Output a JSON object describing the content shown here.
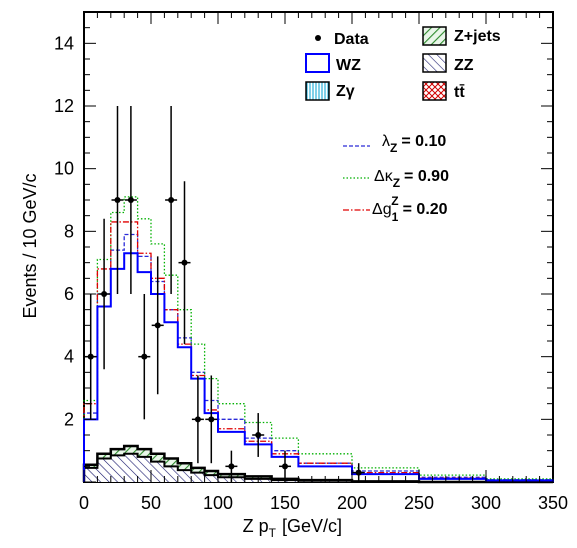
{
  "chart_data": {
    "type": "histogram",
    "xlabel": "Z p_T [GeV/c]",
    "xlabel_main": "Z p",
    "xlabel_sub": "T",
    "xlabel_unit": "[GeV/c]",
    "ylabel": "Events / 10 GeV/c",
    "xlim": [
      0,
      350
    ],
    "ylim": [
      0,
      15
    ],
    "xticks": [
      "0",
      "50",
      "100",
      "150",
      "200",
      "250",
      "300",
      "350"
    ],
    "yticks": [
      "2",
      "4",
      "6",
      "8",
      "10",
      "12",
      "14"
    ],
    "bin_edges": [
      0,
      10,
      20,
      30,
      40,
      50,
      60,
      70,
      80,
      90,
      100,
      120,
      140,
      160,
      200,
      250,
      300,
      350
    ],
    "legend": {
      "data": "Data",
      "wz": "WZ",
      "zgamma": "Zγ",
      "zjets": "Z+jets",
      "zz": "ZZ",
      "ttbar": "tt̄",
      "lambda_symbol": "λ",
      "lambda_sub": "Z",
      "lambda_value": "= 0.10",
      "kappa_symbol": "Δκ",
      "kappa_sub": "Z",
      "kappa_value": "= 0.90",
      "g_symbol": "Δg",
      "g_sub": "1",
      "g_sup": "Z",
      "g_value": "= 0.20"
    },
    "colors": {
      "wz": "#0000ff",
      "lambda": "#2a2ad8",
      "kappa": "#00b000",
      "g1": "#e00000",
      "zjets_fill": "#2e8b2e",
      "zz_fill": "#1a1a6e",
      "zgamma_fill": "#00a0d0",
      "ttbar_fill": "#d00000"
    },
    "series": [
      {
        "name": "WZ",
        "values": [
          2.0,
          5.6,
          6.8,
          7.3,
          6.7,
          6.0,
          5.1,
          4.3,
          3.3,
          2.2,
          1.6,
          1.2,
          0.8,
          0.5,
          0.25,
          0.1,
          0.05
        ]
      },
      {
        "name": "λZ = 0.10",
        "values": [
          2.2,
          6.0,
          7.4,
          7.9,
          7.2,
          6.4,
          5.5,
          4.6,
          3.5,
          2.6,
          2.0,
          1.4,
          1.0,
          0.6,
          0.35,
          0.15,
          0.07
        ]
      },
      {
        "name": "ΔκZ = 0.90",
        "values": [
          2.6,
          7.1,
          8.6,
          9.1,
          8.4,
          7.6,
          6.6,
          5.5,
          4.4,
          3.3,
          2.5,
          1.9,
          1.4,
          0.9,
          0.45,
          0.22,
          0.1
        ]
      },
      {
        "name": "Δg1Z = 0.20",
        "values": [
          2.5,
          6.8,
          8.3,
          8.3,
          7.3,
          6.5,
          5.5,
          4.4,
          3.4,
          2.3,
          1.7,
          1.3,
          0.9,
          0.6,
          0.3,
          0.12,
          0.05
        ]
      }
    ],
    "backgrounds": {
      "zz": [
        0.45,
        0.75,
        0.85,
        0.9,
        0.8,
        0.65,
        0.5,
        0.38,
        0.3,
        0.22,
        0.15,
        0.1,
        0.06,
        0.04,
        0.0,
        0.0,
        0.0
      ],
      "total": [
        0.55,
        0.9,
        1.05,
        1.15,
        1.05,
        0.9,
        0.75,
        0.6,
        0.45,
        0.35,
        0.25,
        0.18,
        0.1,
        0.06,
        0.02,
        0.0,
        0.0
      ]
    },
    "data_points": [
      {
        "x": 5,
        "y": 4,
        "yerr": 2
      },
      {
        "x": 15,
        "y": 6,
        "yerr": 2.4
      },
      {
        "x": 25,
        "y": 9,
        "yerr": 3
      },
      {
        "x": 35,
        "y": 9,
        "yerr": 3
      },
      {
        "x": 45,
        "y": 4,
        "yerr": 2
      },
      {
        "x": 55,
        "y": 5,
        "yerr": 2.2
      },
      {
        "x": 65,
        "y": 9,
        "yerr": 3
      },
      {
        "x": 75,
        "y": 7,
        "yerr": 2.6
      },
      {
        "x": 85,
        "y": 2,
        "yerr": 1.4
      },
      {
        "x": 95,
        "y": 2,
        "yerr": 1.4
      },
      {
        "x": 110,
        "y": 0.5,
        "yerr": 0.5
      },
      {
        "x": 130,
        "y": 1.5,
        "yerr": 0.7
      },
      {
        "x": 150,
        "y": 0.5,
        "yerr": 0.5
      },
      {
        "x": 205,
        "y": 0.3,
        "yerr": 0.3
      }
    ]
  }
}
